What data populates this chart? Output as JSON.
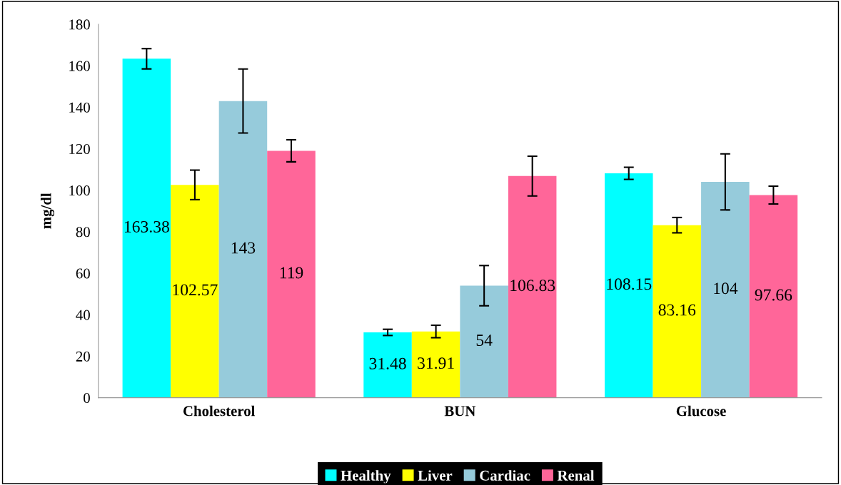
{
  "chart_data": {
    "type": "bar",
    "ylabel": "mg/dl",
    "categories": [
      "Cholesterol",
      "BUN",
      "Glucose"
    ],
    "ylim": [
      0,
      180
    ],
    "yticks": [
      0,
      20,
      40,
      60,
      80,
      100,
      120,
      140,
      160,
      180
    ],
    "grid": false,
    "legend": "bottom",
    "series": [
      {
        "name": "Healthy",
        "color": "#00ffff",
        "values": [
          163.38,
          31.48,
          108.15
        ],
        "errors": [
          4.9,
          1.5,
          2.9
        ],
        "value_labels": [
          "163.38",
          "31.48",
          "108.15"
        ]
      },
      {
        "name": "Liver",
        "color": "#ffff00",
        "values": [
          102.57,
          31.91,
          83.16
        ],
        "errors": [
          7.1,
          3,
          3.7
        ],
        "value_labels": [
          "102.57",
          "31.91",
          "83.16"
        ]
      },
      {
        "name": "Cardiac",
        "color": "#96cbdb",
        "values": [
          143,
          54,
          104
        ],
        "errors": [
          15.4,
          9.7,
          13.5
        ],
        "value_labels": [
          "143",
          "54",
          "104"
        ]
      },
      {
        "name": "Renal",
        "color": "#ff6699",
        "values": [
          119,
          106.83,
          97.66
        ],
        "errors": [
          5.3,
          9.6,
          4.3
        ],
        "value_labels": [
          "119",
          "106.83",
          "97.66"
        ]
      }
    ]
  }
}
